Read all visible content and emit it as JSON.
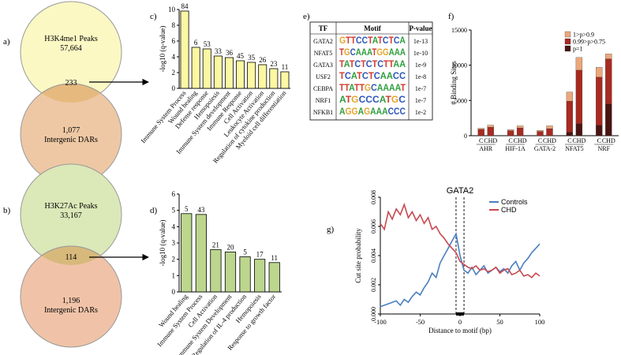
{
  "panels": {
    "a": "a)",
    "b": "b)",
    "c": "c)",
    "d": "d)",
    "e": "e)",
    "f": "f)",
    "g": "g)"
  },
  "venn_a": {
    "top_line1": "H3K4me1 Peaks",
    "top_line2": "57,664",
    "overlap": "233",
    "bottom_line1": "1,077",
    "bottom_line2": "Intergenic DARs",
    "top_color": "#fbf8c4",
    "bottom_color": "#eec8a4",
    "overlap_color": "#e6b97e"
  },
  "venn_b": {
    "top_line1": "H3K27Ac Peaks",
    "top_line2": "33,167",
    "overlap": "114",
    "bottom_line1": "1,196",
    "bottom_line2": "Intergenic DARs",
    "top_color": "#dbe8b8",
    "bottom_color": "#f0c3a8",
    "overlap_color": "#d8b97c"
  },
  "chart_data": [
    {
      "id": "c",
      "type": "bar",
      "color": "#fbf7a2",
      "ylabel": "-log10 (q-value)",
      "ylim": [
        0,
        10
      ],
      "yticks": [
        0,
        2,
        4,
        6,
        8,
        10
      ],
      "categories": [
        "Immune System Process",
        "Wound healing",
        "Defense response",
        "Hemopoiesis",
        "Immune System development",
        "Immune Response",
        "Cell Activation",
        "Leukocyte Activation",
        "Regulation of cytokine production",
        "Myeloid cell differentiation"
      ],
      "values": [
        9.8,
        5.2,
        5.0,
        4.1,
        3.9,
        3.5,
        3.3,
        3.0,
        2.5,
        2.1
      ],
      "labels": [
        "84",
        "6",
        "53",
        "33",
        "36",
        "45",
        "35",
        "26",
        "23",
        "11"
      ]
    },
    {
      "id": "d",
      "type": "bar",
      "color": "#bcd68e",
      "ylabel": "-log10 (q-value)",
      "ylim": [
        0,
        6
      ],
      "yticks": [
        0,
        1,
        2,
        3,
        4,
        5,
        6
      ],
      "categories": [
        "Wound healing",
        "Immune System Process",
        "Cell Activation",
        "Immune System Development",
        "Regulation of IL-4 production",
        "Hemopoiesis",
        "Response to growth factor"
      ],
      "values": [
        4.8,
        4.75,
        2.6,
        2.45,
        2.15,
        2.0,
        1.8
      ],
      "labels": [
        "5",
        "43",
        "21",
        "20",
        "5",
        "17",
        "11"
      ]
    },
    {
      "id": "f",
      "type": "bar",
      "stacked": true,
      "ylabel": "# Binding Sites",
      "ylim": [
        0,
        15000
      ],
      "yticks": [
        0,
        5000,
        10000,
        15000
      ],
      "groups": [
        "AHR",
        "HIF-1A",
        "GATA-2",
        "NFAT5",
        "NRF"
      ],
      "conditions": [
        "C",
        "CHD"
      ],
      "series": [
        {
          "name": "p=1",
          "color": "#4a1410",
          "values": [
            [
              0,
              0
            ],
            [
              0,
              0
            ],
            [
              0,
              0
            ],
            [
              500,
              1700
            ],
            [
              1500,
              4500
            ]
          ]
        },
        {
          "name": "0.99>p>0.75",
          "color": "#a82a20",
          "values": [
            [
              900,
              1200
            ],
            [
              700,
              1100
            ],
            [
              600,
              1000
            ],
            [
              4400,
              7600
            ],
            [
              6800,
              6400
            ]
          ]
        },
        {
          "name": "1>p>0.9",
          "color": "#eca87c",
          "values": [
            [
              150,
              300
            ],
            [
              150,
              300
            ],
            [
              150,
              400
            ],
            [
              1300,
              1800
            ],
            [
              1400,
              700
            ]
          ]
        }
      ],
      "legend": [
        "1>p>0.9",
        "0.99>p>0.75",
        "p=1"
      ]
    },
    {
      "id": "g",
      "type": "line",
      "title": "GATA2",
      "xlabel": "Distance to motif (bp)",
      "ylabel": "Cut site probability",
      "xlim": [
        -100,
        100
      ],
      "ylim": [
        0,
        0.008
      ],
      "xticks": [
        -100,
        -50,
        0,
        50,
        100
      ],
      "yticks": [
        0.0,
        0.002,
        0.004,
        0.006,
        0.008
      ],
      "ytick_labels": [
        "0.000",
        "0.002",
        "0.004",
        "0.006",
        "0.008"
      ],
      "motif_lines": [
        -5,
        5
      ],
      "series": [
        {
          "name": "Controls",
          "color": "#4a7fc1",
          "x": [
            -100,
            -95,
            -90,
            -85,
            -80,
            -75,
            -70,
            -65,
            -60,
            -55,
            -50,
            -45,
            -40,
            -35,
            -30,
            -25,
            -20,
            -15,
            -10,
            -5,
            0,
            5,
            10,
            15,
            20,
            25,
            30,
            35,
            40,
            45,
            50,
            55,
            60,
            65,
            70,
            75,
            80,
            85,
            90,
            95,
            100
          ],
          "y": [
            0.0005,
            0.0006,
            0.0007,
            0.0008,
            0.0009,
            0.0006,
            0.001,
            0.0008,
            0.0012,
            0.0015,
            0.0013,
            0.0018,
            0.0022,
            0.0028,
            0.0025,
            0.0035,
            0.004,
            0.0045,
            0.005,
            0.0055,
            0.004,
            0.003,
            0.0028,
            0.0032,
            0.0027,
            0.003,
            0.0033,
            0.0028,
            0.003,
            0.0032,
            0.0029,
            0.0031,
            0.0028,
            0.0033,
            0.0036,
            0.003,
            0.0035,
            0.0038,
            0.0042,
            0.0045,
            0.0048
          ]
        },
        {
          "name": "CHD",
          "color": "#c94850",
          "x": [
            -100,
            -95,
            -90,
            -85,
            -80,
            -75,
            -70,
            -65,
            -60,
            -55,
            -50,
            -45,
            -40,
            -35,
            -30,
            -25,
            -20,
            -15,
            -10,
            -5,
            0,
            5,
            10,
            15,
            20,
            25,
            30,
            35,
            40,
            45,
            50,
            55,
            60,
            65,
            70,
            75,
            80,
            85,
            90,
            95,
            100
          ],
          "y": [
            0.0062,
            0.0058,
            0.007,
            0.0065,
            0.0072,
            0.0068,
            0.0075,
            0.0066,
            0.007,
            0.0064,
            0.0068,
            0.0062,
            0.0066,
            0.0058,
            0.006,
            0.0055,
            0.0052,
            0.0048,
            0.0045,
            0.0042,
            0.0036,
            0.0034,
            0.0032,
            0.0031,
            0.0033,
            0.003,
            0.0031,
            0.0029,
            0.003,
            0.0032,
            0.0028,
            0.003,
            0.0031,
            0.0027,
            0.0028,
            0.003,
            0.0026,
            0.0027,
            0.0025,
            0.0028,
            0.0026
          ]
        }
      ]
    }
  ],
  "motif_table": {
    "headers": [
      "TF",
      "Motif",
      "P-value"
    ],
    "rows": [
      {
        "tf": "GATA2",
        "motif": "GTTCCTATCTCA",
        "p": "1e-13"
      },
      {
        "tf": "NFAT5",
        "motif": "TGCAAATGGAAA",
        "p": "1e-10"
      },
      {
        "tf": "GATA3",
        "motif": "TATCTCTCTTAA",
        "p": "1e-9"
      },
      {
        "tf": "USF2",
        "motif": "TCATCTCAACC",
        "p": "1e-8"
      },
      {
        "tf": "CEBPA",
        "motif": "TTATTGCAAAAT",
        "p": "1e-7"
      },
      {
        "tf": "NRF1",
        "motif": "ATGCCCATGC",
        "p": "1e-7"
      },
      {
        "tf": "NFKB1",
        "motif": "AGGAGAAACCC",
        "p": "1e-2"
      }
    ],
    "base_colors": {
      "A": "#2e9e3e",
      "C": "#2c56b8",
      "G": "#e3a52a",
      "T": "#d23a2e"
    }
  }
}
